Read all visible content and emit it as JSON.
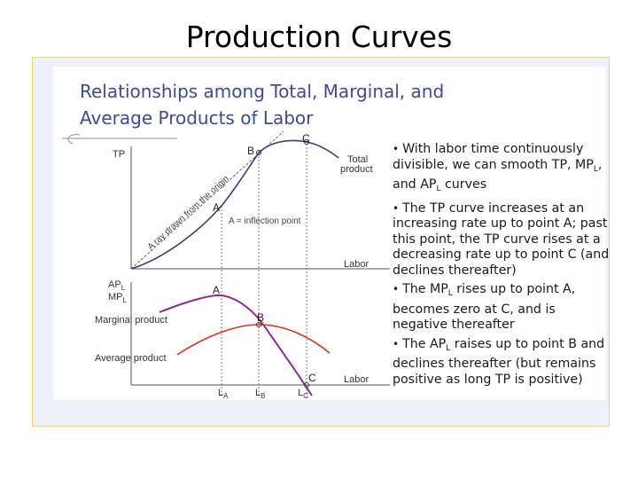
{
  "slide": {
    "title": "Production Curves"
  },
  "figure": {
    "heading_line1": "Relationships among Total, Marginal, and",
    "heading_line2": "Average Products of Labor",
    "top_panel": {
      "y_axis": "TP",
      "x_axis": "Labor",
      "curve_label_line1": "Total",
      "curve_label_line2": "product",
      "point_a": "A",
      "point_b": "B",
      "point_c": "C",
      "inflection_note": "A = inflection point",
      "ray_label": "A ray drawn from the origin"
    },
    "bottom_panel": {
      "y_axis_line1": "AP",
      "y_axis_line1_sub": "L",
      "y_axis_line2": "MP",
      "y_axis_line2_sub": "L",
      "x_axis": "Labor",
      "marginal_label": "Marginal product",
      "average_label": "Average product",
      "point_a": "A",
      "point_b": "B",
      "point_c": "C",
      "tick_a": "L",
      "tick_a_sub": "A",
      "tick_b": "L",
      "tick_b_sub": "B",
      "tick_c": "L",
      "tick_c_sub": "C"
    },
    "colors": {
      "heading": "#3d4a9a",
      "marginal": "#8a2a9a",
      "average": "#e0301e",
      "total": "#3a3a80"
    }
  },
  "bullets": {
    "b1_pre": "With labor time continuously divisible, we can smooth TP, MP",
    "b1_sub": "L",
    "b1_mid": ", and AP",
    "b1_sub2": "L",
    "b1_post": " curves",
    "b2": "The TP curve increases at an increasing rate up to point A; past this point, the TP curve rises at a decreasing rate up to point C (and declines thereafter)",
    "b3_pre": "The MP",
    "b3_sub": "L",
    "b3_post": " rises up to point A, becomes zero at C, and is negative thereafter",
    "b4_pre": "The AP",
    "b4_sub": "L",
    "b4_post": " raises up to point B and declines thereafter (but remains positive as long TP is positive)"
  }
}
